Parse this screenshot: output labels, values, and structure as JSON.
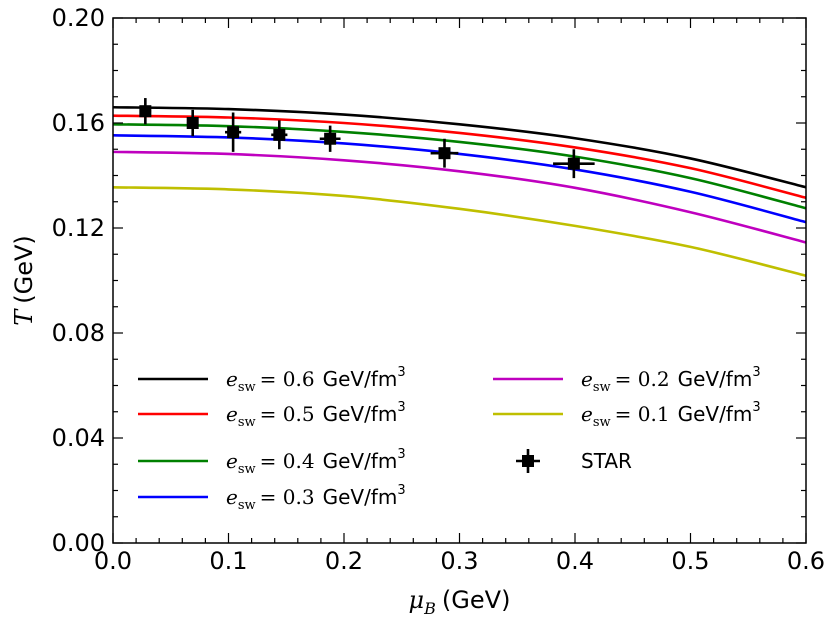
{
  "chart_data": {
    "type": "line",
    "xlabel": {
      "symbol": "μ",
      "subscript": "B",
      "unit": "(GeV)"
    },
    "ylabel": {
      "symbol": "T",
      "unit": "(GeV)"
    },
    "xlim": [
      0.0,
      0.6
    ],
    "ylim": [
      0.0,
      0.2
    ],
    "xticks": [
      "0.0",
      "0.1",
      "0.2",
      "0.3",
      "0.4",
      "0.5",
      "0.6"
    ],
    "yticks": [
      "0.00",
      "0.04",
      "0.08",
      "0.12",
      "0.16",
      "0.20"
    ],
    "x_minor_step": 0.02,
    "y_minor_step": 0.01,
    "grid": false,
    "legend_position": "lower-center",
    "series": [
      {
        "name_prefix": "e",
        "name_sub": "sw",
        "name_value": "= 0.6",
        "name_unit": "GeV/fm",
        "name_exp": "3",
        "color": "#000000",
        "x": [
          0.0,
          0.1,
          0.2,
          0.3,
          0.4,
          0.5,
          0.6
        ],
        "y": [
          0.166,
          0.1653,
          0.1632,
          0.1595,
          0.1542,
          0.1465,
          0.1355
        ]
      },
      {
        "name_prefix": "e",
        "name_sub": "sw",
        "name_value": "= 0.5",
        "name_unit": "GeV/fm",
        "name_exp": "3",
        "color": "#ff0000",
        "x": [
          0.0,
          0.1,
          0.2,
          0.3,
          0.4,
          0.5,
          0.6
        ],
        "y": [
          0.1628,
          0.1621,
          0.16,
          0.1562,
          0.1507,
          0.1428,
          0.1315
        ]
      },
      {
        "name_prefix": "e",
        "name_sub": "sw",
        "name_value": "= 0.4",
        "name_unit": "GeV/fm",
        "name_exp": "3",
        "color": "#008000",
        "x": [
          0.0,
          0.1,
          0.2,
          0.3,
          0.4,
          0.5,
          0.6
        ],
        "y": [
          0.1595,
          0.1588,
          0.1566,
          0.1528,
          0.1472,
          0.139,
          0.1275
        ]
      },
      {
        "name_prefix": "e",
        "name_sub": "sw",
        "name_value": "= 0.3",
        "name_unit": "GeV/fm",
        "name_exp": "3",
        "color": "#0000ff",
        "x": [
          0.0,
          0.1,
          0.2,
          0.3,
          0.4,
          0.5,
          0.6
        ],
        "y": [
          0.1553,
          0.1545,
          0.1522,
          0.1482,
          0.1423,
          0.1338,
          0.1222
        ]
      },
      {
        "name_prefix": "e",
        "name_sub": "sw",
        "name_value": "= 0.2",
        "name_unit": "GeV/fm",
        "name_exp": "3",
        "color": "#bf00bf",
        "x": [
          0.0,
          0.1,
          0.2,
          0.3,
          0.4,
          0.5,
          0.6
        ],
        "y": [
          0.149,
          0.1482,
          0.1458,
          0.1416,
          0.1353,
          0.126,
          0.1145
        ]
      },
      {
        "name_prefix": "e",
        "name_sub": "sw",
        "name_value": "= 0.1",
        "name_unit": "GeV/fm",
        "name_exp": "3",
        "color": "#bfbf00",
        "x": [
          0.0,
          0.1,
          0.2,
          0.3,
          0.4,
          0.5,
          0.6
        ],
        "y": [
          0.1355,
          0.1347,
          0.1322,
          0.1273,
          0.1208,
          0.1128,
          0.1018
        ]
      }
    ],
    "points": {
      "name": "STAR",
      "color": "#000000",
      "data": [
        {
          "x": 0.028,
          "y": 0.1645,
          "xerr": 0.005,
          "yerr": 0.005
        },
        {
          "x": 0.069,
          "y": 0.16,
          "xerr": 0.005,
          "yerr": 0.005
        },
        {
          "x": 0.104,
          "y": 0.1565,
          "xerr": 0.007,
          "yerr": 0.0075
        },
        {
          "x": 0.144,
          "y": 0.1555,
          "xerr": 0.007,
          "yerr": 0.0055
        },
        {
          "x": 0.188,
          "y": 0.154,
          "xerr": 0.009,
          "yerr": 0.005
        },
        {
          "x": 0.287,
          "y": 0.1485,
          "xerr": 0.012,
          "yerr": 0.0055
        },
        {
          "x": 0.399,
          "y": 0.1445,
          "xerr": 0.018,
          "yerr": 0.0055
        }
      ]
    }
  }
}
